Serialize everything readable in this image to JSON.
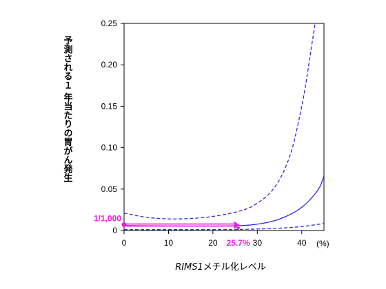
{
  "chart_data": {
    "type": "line",
    "ylabel": "予測される１ 年当たりの胃がん発生",
    "xlabel_italic": "RIMS1",
    "xlabel_rest": "メチル化レベル",
    "x_unit_label": "(%)",
    "xlim": [
      0,
      45
    ],
    "ylim": [
      0,
      0.25
    ],
    "x_ticks": [
      0,
      10,
      20,
      30,
      40
    ],
    "x_tick_labels": [
      "0",
      "10",
      "20",
      "30",
      "40"
    ],
    "y_ticks": [
      0,
      0.05,
      0.1,
      0.15,
      0.2,
      0.25
    ],
    "y_tick_labels": [
      "0",
      "0.05",
      "0.10",
      "0.15",
      "0.20",
      "0.25"
    ],
    "grid": false,
    "series": [
      {
        "style": "solid",
        "color": "#2b2bd6",
        "x": [
          0,
          5,
          10,
          15,
          20,
          25,
          28,
          30,
          32,
          34,
          36,
          38,
          40,
          42,
          44,
          45
        ],
        "y": [
          0.006,
          0.0057,
          0.0055,
          0.0054,
          0.0054,
          0.0057,
          0.0065,
          0.0077,
          0.0095,
          0.012,
          0.016,
          0.021,
          0.028,
          0.038,
          0.052,
          0.066
        ]
      },
      {
        "style": "dashed",
        "color": "#2b2bd6",
        "x": [
          0,
          5,
          10,
          15,
          20,
          25,
          28,
          30,
          32,
          34,
          36,
          38,
          40,
          41,
          42,
          43
        ],
        "y": [
          0.021,
          0.016,
          0.014,
          0.0145,
          0.017,
          0.022,
          0.027,
          0.033,
          0.041,
          0.053,
          0.072,
          0.102,
          0.15,
          0.18,
          0.215,
          0.25
        ]
      },
      {
        "style": "dashed",
        "color": "#2b2bd6",
        "x": [
          0,
          5,
          10,
          15,
          20,
          25,
          30,
          35,
          40,
          45
        ],
        "y": [
          0.0012,
          0.0011,
          0.0011,
          0.0011,
          0.0012,
          0.0013,
          0.0018,
          0.0028,
          0.0048,
          0.0085
        ]
      }
    ],
    "annotations": [
      {
        "text": "1/1,000",
        "color": "#e020e0",
        "x": 0,
        "y": 0.007
      },
      {
        "text": "25.7%",
        "color": "#e020e0",
        "x": 25.7,
        "y": 0.0055
      }
    ],
    "accent_color": "#e020e0"
  }
}
